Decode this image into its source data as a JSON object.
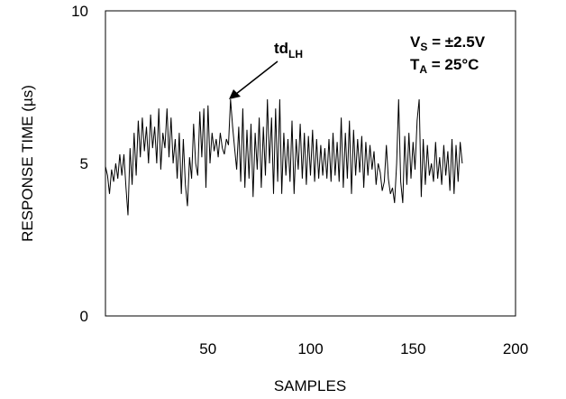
{
  "chart_data": {
    "type": "line",
    "xlabel": "SAMPLES",
    "ylabel": "RESPONSE TIME (µs)",
    "xlim": [
      0,
      200
    ],
    "ylim": [
      0,
      10
    ],
    "x_ticks": [
      "50",
      "100",
      "150",
      "200"
    ],
    "y_ticks": [
      "0",
      "5",
      "10"
    ],
    "grid": false,
    "annotation": {
      "main": "td",
      "sub": "LH"
    },
    "conditions": [
      {
        "main": "V",
        "sub": "S",
        "rest": " = ±2.5V"
      },
      {
        "main": "T",
        "sub": "A",
        "rest": " = 25°C"
      }
    ],
    "series": [
      {
        "values": [
          4.9,
          4.6,
          4.0,
          4.8,
          4.4,
          5.0,
          4.5,
          5.3,
          4.6,
          5.3,
          4.2,
          3.3,
          5.5,
          4.3,
          6.0,
          4.6,
          6.4,
          5.2,
          6.5,
          5.4,
          6.2,
          5.0,
          6.6,
          5.5,
          6.2,
          5.0,
          6.8,
          4.8,
          6.0,
          5.5,
          6.8,
          5.2,
          6.5,
          5.0,
          5.8,
          4.5,
          6.0,
          4.0,
          5.8,
          4.3,
          3.6,
          5.2,
          4.5,
          6.3,
          5.0,
          4.6,
          6.7,
          5.2,
          6.8,
          4.2,
          6.9,
          5.0,
          6.0,
          5.4,
          5.8,
          5.2,
          6.0,
          5.5,
          5.3,
          5.8,
          5.6,
          7.1,
          6.2,
          5.5,
          4.8,
          6.2,
          4.4,
          6.8,
          4.2,
          6.1,
          4.5,
          6.3,
          3.9,
          6.0,
          4.8,
          6.5,
          4.2,
          6.2,
          4.6,
          7.1,
          5.0,
          6.5,
          4.0,
          6.8,
          4.4,
          7.1,
          4.0,
          6.0,
          4.6,
          5.8,
          4.4,
          6.4,
          4.0,
          5.8,
          4.8,
          6.3,
          4.5,
          6.0,
          4.3,
          5.9,
          4.6,
          6.1,
          4.4,
          5.8,
          4.5,
          5.6,
          4.6,
          5.5,
          4.5,
          5.8,
          4.4,
          6.0,
          4.6,
          5.7,
          4.4,
          6.5,
          4.2,
          6.0,
          4.5,
          6.4,
          4.0,
          6.1,
          4.6,
          5.8,
          4.7,
          5.9,
          4.2,
          5.7,
          4.6,
          5.6,
          4.8,
          5.4,
          4.3,
          5.0,
          4.7,
          4.1,
          4.4,
          5.6,
          4.5,
          4.0,
          4.2,
          3.7,
          5.0,
          7.1,
          4.4,
          3.7,
          5.9,
          4.3,
          6.0,
          4.5,
          5.7,
          4.8,
          6.4,
          7.1,
          3.9,
          5.8,
          4.3,
          5.6,
          4.6,
          5.0,
          4.4,
          5.7,
          4.5,
          5.2,
          4.3,
          5.6,
          4.6,
          5.4,
          4.1,
          5.8,
          4.0,
          5.6,
          4.4,
          5.7,
          5.0
        ],
        "x_start": 0,
        "x_step": 1
      }
    ]
  }
}
